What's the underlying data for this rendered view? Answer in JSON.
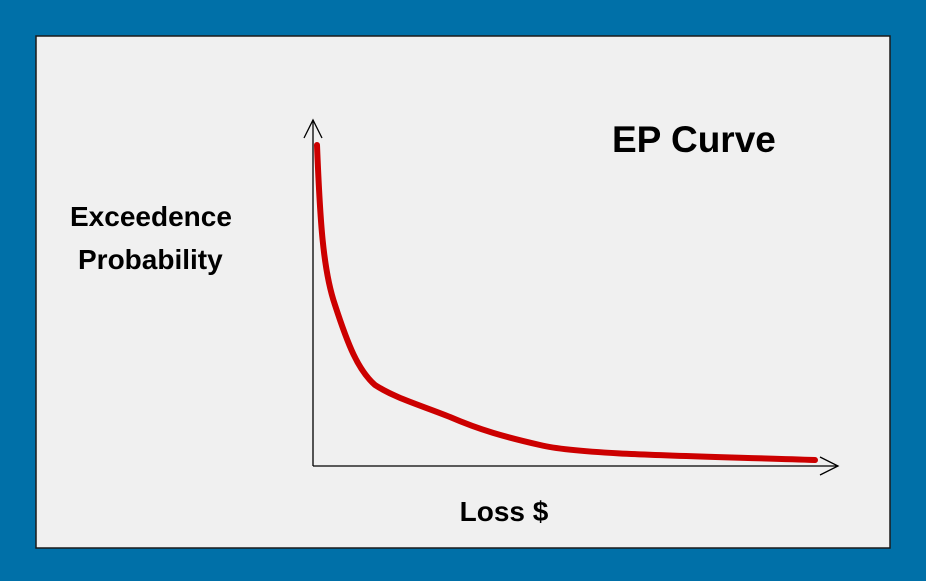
{
  "title": "EP Curve",
  "y_axis_label": [
    "Exceedence",
    "Probability"
  ],
  "x_axis_label": "Loss $"
}
